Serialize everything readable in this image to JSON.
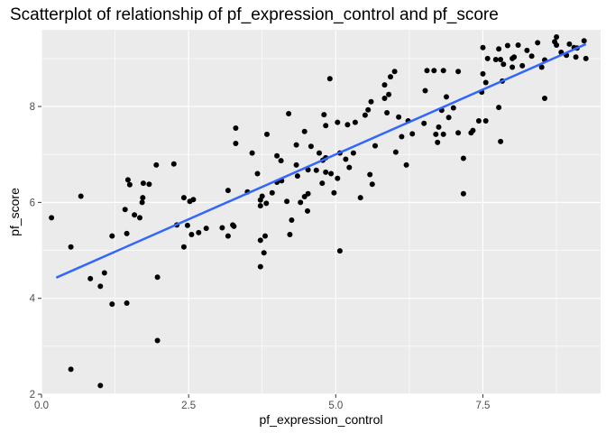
{
  "chart_data": {
    "type": "scatter",
    "title": "Scatterplot of relationship of pf_expression_control and pf_score",
    "xlabel": "pf_expression_control",
    "ylabel": "pf_score",
    "xlim": [
      0,
      9.5
    ],
    "ylim": [
      2.0,
      9.6
    ],
    "x_ticks": [
      0.0,
      2.5,
      5.0,
      7.5
    ],
    "x_tick_labels": [
      "0.0",
      "2.5",
      "5.0",
      "7.5"
    ],
    "y_ticks": [
      2,
      4,
      6,
      8
    ],
    "y_tick_labels": [
      "2",
      "4",
      "6",
      "8"
    ],
    "grid": true,
    "panel_background": "#ebebeb",
    "point_color": "#000000",
    "trend_color": "#3366ff",
    "trend_line": {
      "x": [
        0.25,
        9.25
      ],
      "y": [
        4.43,
        9.3
      ]
    },
    "points": [
      [
        0.17,
        5.68
      ],
      [
        0.5,
        5.07
      ],
      [
        0.5,
        2.52
      ],
      [
        0.67,
        6.13
      ],
      [
        0.83,
        4.41
      ],
      [
        1.0,
        2.18
      ],
      [
        1.0,
        4.25
      ],
      [
        1.07,
        4.53
      ],
      [
        1.2,
        3.88
      ],
      [
        1.2,
        5.3
      ],
      [
        1.42,
        5.85
      ],
      [
        1.45,
        3.9
      ],
      [
        1.45,
        5.35
      ],
      [
        1.47,
        6.47
      ],
      [
        1.5,
        6.37
      ],
      [
        1.58,
        5.74
      ],
      [
        1.67,
        5.68
      ],
      [
        1.71,
        6.0
      ],
      [
        1.72,
        6.1
      ],
      [
        1.73,
        6.4
      ],
      [
        1.83,
        6.38
      ],
      [
        1.95,
        6.78
      ],
      [
        1.97,
        4.44
      ],
      [
        1.97,
        3.12
      ],
      [
        2.25,
        6.8
      ],
      [
        2.3,
        5.53
      ],
      [
        2.42,
        6.1
      ],
      [
        2.42,
        5.07
      ],
      [
        2.48,
        5.52
      ],
      [
        2.52,
        6.02
      ],
      [
        2.55,
        5.33
      ],
      [
        2.58,
        6.06
      ],
      [
        2.67,
        5.37
      ],
      [
        2.8,
        5.46
      ],
      [
        3.07,
        5.47
      ],
      [
        3.17,
        6.25
      ],
      [
        3.17,
        5.3
      ],
      [
        3.25,
        5.53
      ],
      [
        3.27,
        5.5
      ],
      [
        3.3,
        7.55
      ],
      [
        3.3,
        7.23
      ],
      [
        3.5,
        6.22
      ],
      [
        3.58,
        7.03
      ],
      [
        3.67,
        6.6
      ],
      [
        3.72,
        6.05
      ],
      [
        3.72,
        5.93
      ],
      [
        3.72,
        5.21
      ],
      [
        3.72,
        4.66
      ],
      [
        3.75,
        6.13
      ],
      [
        3.78,
        4.95
      ],
      [
        3.8,
        5.3
      ],
      [
        3.82,
        5.98
      ],
      [
        3.83,
        7.42
      ],
      [
        3.92,
        6.2
      ],
      [
        4.0,
        6.97
      ],
      [
        4.0,
        6.42
      ],
      [
        4.07,
        6.87
      ],
      [
        4.08,
        6.45
      ],
      [
        4.17,
        6.02
      ],
      [
        4.2,
        7.85
      ],
      [
        4.22,
        5.33
      ],
      [
        4.25,
        5.63
      ],
      [
        4.33,
        6.78
      ],
      [
        4.33,
        7.2
      ],
      [
        4.35,
        6.55
      ],
      [
        4.4,
        6.0
      ],
      [
        4.47,
        7.48
      ],
      [
        4.47,
        6.12
      ],
      [
        4.53,
        6.18
      ],
      [
        4.52,
        5.82
      ],
      [
        4.53,
        6.68
      ],
      [
        4.58,
        7.17
      ],
      [
        4.67,
        6.67
      ],
      [
        4.72,
        7.03
      ],
      [
        4.77,
        6.4
      ],
      [
        4.78,
        6.88
      ],
      [
        4.8,
        7.83
      ],
      [
        4.83,
        6.93
      ],
      [
        4.83,
        6.63
      ],
      [
        4.83,
        7.6
      ],
      [
        4.9,
        8.58
      ],
      [
        4.92,
        6.6
      ],
      [
        4.97,
        6.2
      ],
      [
        5.03,
        7.67
      ],
      [
        5.03,
        6.5
      ],
      [
        5.07,
        4.99
      ],
      [
        5.07,
        7.03
      ],
      [
        5.17,
        6.9
      ],
      [
        5.2,
        7.62
      ],
      [
        5.23,
        6.73
      ],
      [
        5.3,
        7.03
      ],
      [
        5.33,
        7.67
      ],
      [
        5.42,
        6.1
      ],
      [
        5.5,
        7.82
      ],
      [
        5.55,
        7.93
      ],
      [
        5.58,
        6.58
      ],
      [
        5.6,
        8.1
      ],
      [
        5.62,
        6.38
      ],
      [
        5.67,
        7.18
      ],
      [
        5.83,
        8.45
      ],
      [
        5.83,
        8.17
      ],
      [
        5.87,
        7.87
      ],
      [
        5.9,
        8.25
      ],
      [
        5.93,
        8.62
      ],
      [
        6.0,
        8.73
      ],
      [
        6.02,
        7.05
      ],
      [
        6.07,
        7.78
      ],
      [
        6.12,
        7.37
      ],
      [
        6.2,
        6.78
      ],
      [
        6.23,
        7.7
      ],
      [
        6.3,
        7.43
      ],
      [
        6.5,
        7.65
      ],
      [
        6.52,
        8.33
      ],
      [
        6.55,
        8.75
      ],
      [
        6.67,
        8.75
      ],
      [
        6.7,
        7.42
      ],
      [
        6.73,
        7.25
      ],
      [
        6.75,
        7.57
      ],
      [
        6.8,
        7.92
      ],
      [
        6.83,
        7.42
      ],
      [
        6.83,
        8.75
      ],
      [
        6.88,
        8.2
      ],
      [
        6.92,
        7.77
      ],
      [
        7.0,
        7.97
      ],
      [
        7.08,
        7.45
      ],
      [
        7.08,
        8.73
      ],
      [
        7.17,
        6.92
      ],
      [
        7.17,
        6.18
      ],
      [
        7.3,
        7.45
      ],
      [
        7.33,
        7.5
      ],
      [
        7.43,
        7.7
      ],
      [
        7.48,
        8.3
      ],
      [
        7.5,
        9.23
      ],
      [
        7.5,
        8.68
      ],
      [
        7.55,
        8.5
      ],
      [
        7.55,
        7.7
      ],
      [
        7.58,
        9.0
      ],
      [
        7.72,
        8.98
      ],
      [
        7.77,
        9.2
      ],
      [
        7.77,
        7.98
      ],
      [
        7.8,
        8.98
      ],
      [
        7.8,
        7.27
      ],
      [
        7.83,
        8.53
      ],
      [
        7.85,
        8.88
      ],
      [
        7.92,
        9.27
      ],
      [
        8.0,
        9.0
      ],
      [
        8.0,
        8.82
      ],
      [
        8.03,
        9.03
      ],
      [
        8.1,
        9.28
      ],
      [
        8.17,
        8.85
      ],
      [
        8.25,
        9.17
      ],
      [
        8.33,
        9.05
      ],
      [
        8.43,
        9.33
      ],
      [
        8.5,
        8.82
      ],
      [
        8.55,
        8.97
      ],
      [
        8.55,
        8.17
      ],
      [
        8.72,
        9.35
      ],
      [
        8.75,
        9.28
      ],
      [
        8.75,
        9.45
      ],
      [
        8.83,
        9.13
      ],
      [
        8.92,
        9.07
      ],
      [
        8.97,
        9.3
      ],
      [
        9.05,
        9.23
      ],
      [
        9.08,
        9.03
      ],
      [
        9.1,
        9.22
      ],
      [
        9.22,
        9.37
      ],
      [
        9.25,
        9.0
      ]
    ]
  }
}
